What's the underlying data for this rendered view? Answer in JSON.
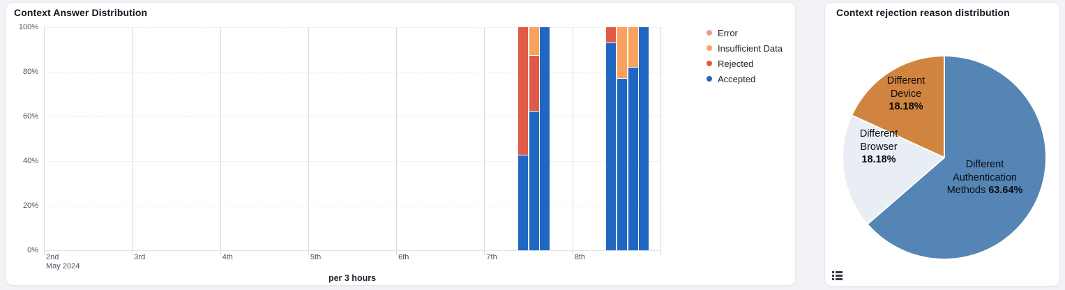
{
  "page": {
    "background": "#f1f3f6"
  },
  "left_panel": {
    "title": "Context Answer Distribution",
    "x_axis_caption": "per 3 hours",
    "x_axis_month_label": "May 2024",
    "legend": [
      {
        "label": "Error",
        "color": "#eb9c8c"
      },
      {
        "label": "Insufficient Data",
        "color": "#f8a25e"
      },
      {
        "label": "Rejected",
        "color": "#e05a47"
      },
      {
        "label": "Accepted",
        "color": "#2067c3"
      }
    ]
  },
  "right_panel": {
    "title": "Context rejection reason distribution",
    "icons": {
      "bottom_left": "list-legend-icon"
    }
  },
  "chart_data": [
    {
      "type": "bar",
      "stacked": "percent",
      "title": "Context Answer Distribution",
      "xlabel": "per 3 hours",
      "ylabel": "",
      "ylim": [
        0,
        100
      ],
      "grid": true,
      "legend_position": "right",
      "ytick_labels": [
        "0%",
        "20%",
        "40%",
        "60%",
        "80%",
        "100%"
      ],
      "xtick_labels": [
        "2nd",
        "3rd",
        "4th",
        "5th",
        "6th",
        "7th",
        "8th"
      ],
      "x_start_sublabel": "May 2024",
      "stack_order_bottom_to_top": [
        "Accepted",
        "Rejected",
        "Insufficient Data",
        "Error"
      ],
      "bars": [
        {
          "day_label": "7th",
          "time": "09:00",
          "slot": 3,
          "values": {
            "Accepted": 42.9,
            "Rejected": 57.1,
            "Insufficient Data": 0,
            "Error": 0
          }
        },
        {
          "day_label": "7th",
          "time": "12:00",
          "slot": 4,
          "values": {
            "Accepted": 62.5,
            "Rejected": 25.0,
            "Insufficient Data": 12.5,
            "Error": 0
          }
        },
        {
          "day_label": "7th",
          "time": "15:00",
          "slot": 5,
          "values": {
            "Accepted": 100,
            "Rejected": 0,
            "Insufficient Data": 0,
            "Error": 0
          }
        },
        {
          "day_label": "8th",
          "time": "09:00",
          "slot": 3,
          "values": {
            "Accepted": 93.1,
            "Rejected": 6.9,
            "Insufficient Data": 0,
            "Error": 0
          }
        },
        {
          "day_label": "8th",
          "time": "12:00",
          "slot": 4,
          "values": {
            "Accepted": 77.3,
            "Rejected": 0,
            "Insufficient Data": 22.7,
            "Error": 0
          }
        },
        {
          "day_label": "8th",
          "time": "15:00",
          "slot": 5,
          "values": {
            "Accepted": 82.2,
            "Rejected": 0,
            "Insufficient Data": 17.8,
            "Error": 0
          }
        },
        {
          "day_label": "8th",
          "time": "18:00",
          "slot": 6,
          "values": {
            "Accepted": 100,
            "Rejected": 0,
            "Insufficient Data": 0,
            "Error": 0
          }
        }
      ]
    },
    {
      "type": "pie",
      "title": "Context rejection reason distribution",
      "start_angle_deg": 0,
      "direction": "clockwise",
      "slices": [
        {
          "label": "Different Authentication Methods",
          "value": 63.64,
          "pct_label": "63.64%",
          "color": "#5585b5",
          "label_lines": [
            "Different",
            "Authentication",
            "Methods"
          ],
          "pct_on_last_line": true
        },
        {
          "label": "Different Browser",
          "value": 18.18,
          "pct_label": "18.18%",
          "color": "#e9edf4",
          "label_lines": [
            "Different",
            "Browser"
          ],
          "pct_on_last_line": false
        },
        {
          "label": "Different Device",
          "value": 18.18,
          "pct_label": "18.18%",
          "color": "#d0843f",
          "label_lines": [
            "Different",
            "Device"
          ],
          "pct_on_last_line": false
        }
      ]
    }
  ]
}
